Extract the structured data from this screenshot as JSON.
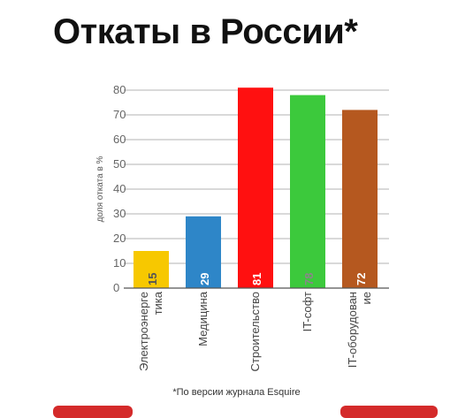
{
  "header": {
    "title": "Откаты в России",
    "title_mark": "*"
  },
  "footnote": "*По версии журнала Esquire",
  "chart_data": {
    "type": "bar",
    "title": "Откаты в России*",
    "ylabel": "доля отката в %",
    "xlabel": "",
    "ylim": [
      0,
      80
    ],
    "yticks": [
      0,
      10,
      20,
      30,
      40,
      50,
      60,
      70,
      80
    ],
    "grid": true,
    "categories": [
      [
        "Электроэнерге",
        "тика"
      ],
      [
        "Медицина"
      ],
      [
        "Строительство"
      ],
      [
        "IT-софт"
      ],
      [
        "IT-оборудован",
        "ие"
      ]
    ],
    "values": [
      15,
      29,
      81,
      78,
      72
    ],
    "colors": [
      "#f7c800",
      "#2e86c8",
      "#ff1010",
      "#3cc93c",
      "#b5581f"
    ],
    "label_colors": [
      "#555555",
      "#ffffff",
      "#ffffff",
      "#888888",
      "#ffffff"
    ]
  }
}
